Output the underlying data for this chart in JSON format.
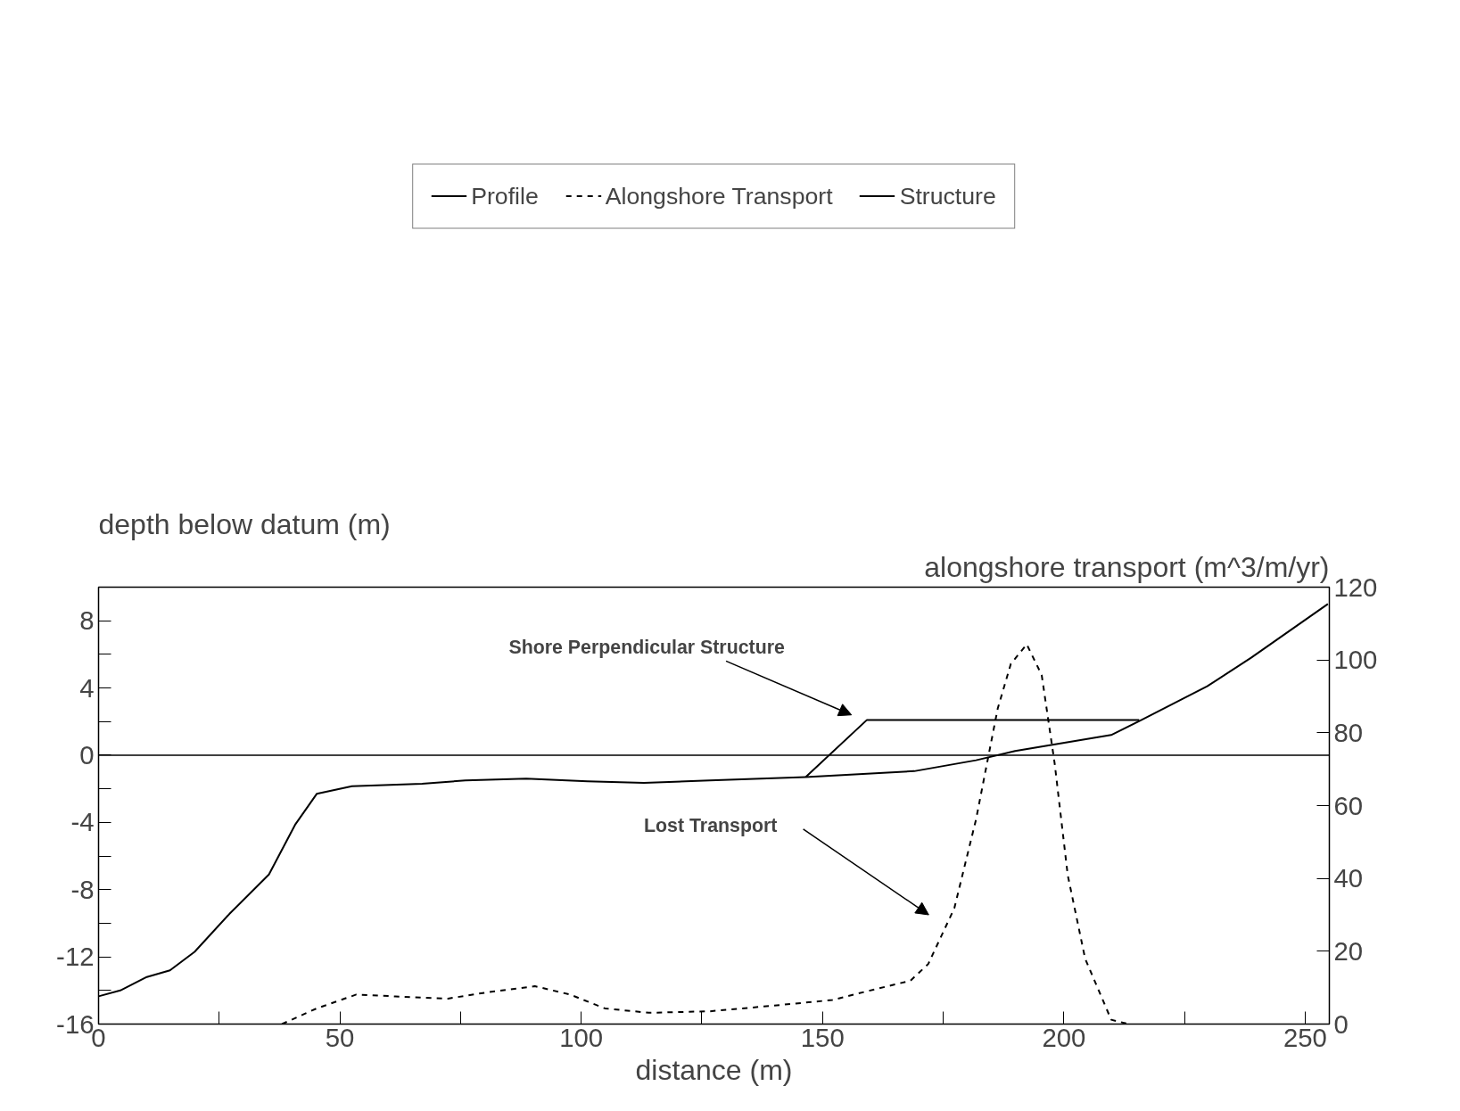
{
  "chart_data": {
    "type": "line",
    "xlabel": "distance (m)",
    "ylabel": "depth below datum (m)",
    "y2label": "alongshore transport (m^3/m/yr)",
    "xlim": [
      0,
      255
    ],
    "ylim": [
      -16,
      10
    ],
    "y2lim": [
      0,
      120
    ],
    "xticks": [
      0,
      {
        "value": 25,
        "label": null
      },
      50,
      {
        "value": 75,
        "label": null
      },
      100,
      {
        "value": 125,
        "label": null
      },
      150,
      {
        "value": 175,
        "label": null
      },
      200,
      {
        "value": 225,
        "label": null
      },
      250
    ],
    "yticks": [
      -16,
      {
        "value": -14,
        "label": null
      },
      -12,
      {
        "value": -10,
        "label": null
      },
      -8,
      {
        "value": -6,
        "label": null
      },
      -4,
      {
        "value": -2,
        "label": null
      },
      0,
      {
        "value": 2,
        "label": null
      },
      4,
      {
        "value": 6,
        "label": null
      },
      8
    ],
    "y2ticks": [
      0,
      20,
      40,
      60,
      80,
      100,
      120
    ],
    "grid": false,
    "legend": "top",
    "series": [
      {
        "name": "Profile",
        "color": "#000000",
        "line_style": "solid",
        "x": [
          0,
          4.5,
          10,
          14.8,
          19.9,
          27.1,
          35.3,
          40.7,
          45.2,
          52.5,
          67,
          76,
          88.6,
          101.3,
          113,
          126.6,
          146.5,
          169,
          181.8,
          189.9,
          209.8,
          216.1,
          229.7,
          238.8,
          254.7
        ],
        "values": [
          -14.35,
          -14.0,
          -13.2,
          -12.8,
          -11.7,
          -9.45,
          -7.1,
          -4.15,
          -2.3,
          -1.85,
          -1.7,
          -1.5,
          -1.4,
          -1.55,
          -1.65,
          -1.5,
          -1.3,
          -0.95,
          -0.3,
          0.25,
          1.2,
          2.1,
          4.1,
          5.8,
          9.0
        ]
      },
      {
        "name": "Alongshore Transport",
        "color": "#000000",
        "line_style": "dashed",
        "axis": "y2",
        "x": [
          38,
          45.2,
          53.4,
          61.5,
          72.4,
          81.4,
          90.4,
          97.7,
          104.9,
          114,
          126.6,
          139.3,
          152,
          161,
          168.2,
          171.9,
          177.3,
          181.8,
          186.3,
          189,
          192.3,
          195.4,
          198.1,
          200.8,
          204.4,
          209.8,
          213.4
        ],
        "values": [
          0,
          4.3,
          8.1,
          7.6,
          7.0,
          8.9,
          10.4,
          8.1,
          4.3,
          3.1,
          3.5,
          5.0,
          6.6,
          9.6,
          11.9,
          16.5,
          31.8,
          56.2,
          86.7,
          98.9,
          104.3,
          95.9,
          71.5,
          40.9,
          18,
          1.2,
          0
        ]
      },
      {
        "name": "Structure",
        "color": "#000000",
        "line_style": "solid",
        "x": [
          146.5,
          159.2,
          215.6
        ],
        "values": [
          -1.3,
          2.1,
          2.1
        ]
      }
    ],
    "ref_lines": [
      {
        "axis": "y",
        "value": 0,
        "label": null,
        "color": "#000000"
      }
    ],
    "annotations": [
      "Shore Perpendicular Structure",
      "Lost Transport"
    ]
  }
}
